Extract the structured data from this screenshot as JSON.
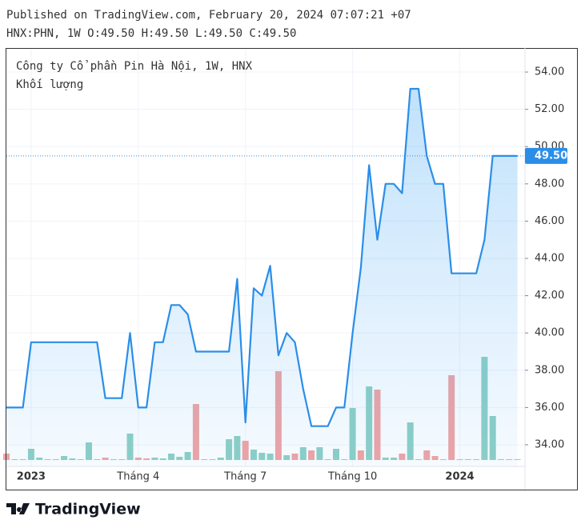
{
  "header": {
    "published": "Published on TradingView.com, February 20, 2024 07:07:21 +07",
    "ohlc": "HNX:PHN, 1W O:49.50 H:49.50 L:49.50 C:49.50"
  },
  "chart_data": {
    "type": "line",
    "legend": [
      "Công ty Cổ phần Pin Hà Nội, 1W, HNX",
      "Khối lượng"
    ],
    "categories": [
      null,
      null,
      null,
      "2023",
      null,
      null,
      null,
      null,
      null,
      null,
      null,
      null,
      null,
      null,
      null,
      null,
      "Tháng 4",
      null,
      null,
      null,
      null,
      null,
      null,
      null,
      null,
      null,
      null,
      null,
      null,
      "Tháng 7",
      null,
      null,
      null,
      null,
      null,
      null,
      null,
      null,
      null,
      null,
      null,
      null,
      "Tháng 10",
      null,
      null,
      null,
      null,
      null,
      null,
      null,
      null,
      null,
      null,
      null,
      null,
      "2024",
      null,
      null,
      null,
      null,
      null,
      null,
      null
    ],
    "series": [
      {
        "name": "Công ty Cổ phần Pin Hà Nội, 1W, HNX",
        "color": "#2a8ee8",
        "values": [
          36.0,
          36.0,
          36.0,
          39.5,
          39.5,
          39.5,
          39.5,
          39.5,
          39.5,
          39.5,
          39.5,
          39.5,
          36.5,
          36.5,
          36.5,
          40.0,
          36.0,
          36.0,
          39.5,
          39.5,
          41.5,
          41.5,
          41.0,
          39.0,
          39.0,
          39.0,
          39.0,
          39.0,
          42.9,
          35.2,
          42.4,
          42.0,
          43.6,
          38.8,
          40.0,
          39.5,
          37.0,
          35.0,
          35.0,
          35.0,
          36.0,
          36.0,
          40.0,
          43.5,
          49.0,
          45.0,
          48.0,
          48.0,
          47.5,
          53.1,
          53.1,
          49.5,
          48.0,
          48.0,
          43.2,
          43.2,
          43.2,
          43.2,
          45.0,
          49.5,
          49.5,
          49.5,
          49.5
        ]
      }
    ],
    "volume": {
      "name": "Khối lượng",
      "values": [
        8,
        1,
        1,
        14,
        3,
        1,
        1,
        5,
        2,
        1,
        22,
        1,
        3,
        1,
        1,
        33,
        3,
        2,
        3,
        2,
        8,
        4,
        10,
        70,
        1,
        1,
        3,
        26,
        30,
        24,
        13,
        9,
        8,
        111,
        6,
        8,
        16,
        12,
        16,
        1,
        14,
        1,
        65,
        12,
        92,
        88,
        3,
        3,
        8,
        47,
        1,
        12,
        5,
        1,
        106,
        1,
        1,
        1,
        129,
        55,
        1,
        1,
        1
      ],
      "colors": [
        "r",
        "g",
        "g",
        "g",
        "g",
        "g",
        "g",
        "g",
        "g",
        "g",
        "g",
        "g",
        "r",
        "g",
        "g",
        "g",
        "r",
        "r",
        "g",
        "g",
        "g",
        "g",
        "g",
        "r",
        "g",
        "g",
        "g",
        "g",
        "g",
        "r",
        "g",
        "g",
        "g",
        "r",
        "g",
        "r",
        "g",
        "r",
        "g",
        "g",
        "g",
        "g",
        "g",
        "r",
        "g",
        "r",
        "g",
        "g",
        "r",
        "g",
        "g",
        "r",
        "r",
        "g",
        "r",
        "g",
        "g",
        "g",
        "g",
        "g",
        "g",
        "g",
        "g"
      ],
      "up_color": "#8fd0c6",
      "down_color": "#f2a4a4",
      "vlim": [
        0,
        130
      ]
    },
    "ylim": [
      32.84,
      55.29
    ],
    "yticks": [
      {
        "value": 34,
        "label": "34.00"
      },
      {
        "value": 36,
        "label": "36.00"
      },
      {
        "value": 38,
        "label": "38.00"
      },
      {
        "value": 40,
        "label": "40.00"
      },
      {
        "value": 42,
        "label": "42.00"
      },
      {
        "value": 44,
        "label": "44.00"
      },
      {
        "value": 46,
        "label": "46.00"
      },
      {
        "value": 48,
        "label": "48.00"
      },
      {
        "value": 50,
        "label": "50.00"
      },
      {
        "value": 52,
        "label": "52.00"
      },
      {
        "value": 54,
        "label": "54.00"
      }
    ],
    "last_price": {
      "value": 49.5,
      "label": "49.50"
    },
    "grid": true
  },
  "footer": {
    "logo": "TradingView"
  }
}
